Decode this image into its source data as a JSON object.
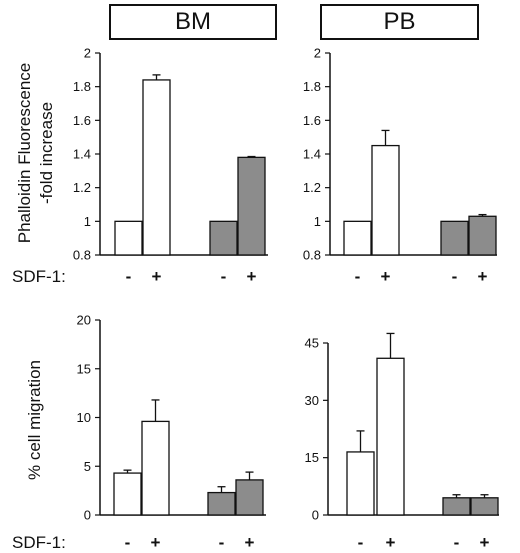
{
  "panel_headers": [
    "BM",
    "PB"
  ],
  "ylabel_top": [
    "Phalloidin Fluorescence",
    "-fold increase"
  ],
  "ylabel_bottom": "% cell migration",
  "sdf_label": "SDF-1:",
  "treatment_signs": [
    "-",
    "+",
    "-",
    "+"
  ],
  "colors": {
    "open_bar": "#ffffff",
    "filled_bar": "#8c8c8c",
    "ink": "#111111"
  },
  "chart_data": [
    {
      "type": "bar",
      "panel": "BM",
      "categories": [
        "-",
        "+",
        "-",
        "+"
      ],
      "values": [
        1.0,
        1.84,
        1.0,
        1.38
      ],
      "errors": [
        0,
        0.03,
        0,
        0.005
      ],
      "fills": [
        "open",
        "open",
        "filled",
        "filled"
      ],
      "ylim": [
        0.8,
        2.0
      ],
      "yticks": [
        0.8,
        1,
        1.2,
        1.4,
        1.6,
        1.8,
        2
      ],
      "ytick_labels": [
        "0.8",
        "1",
        "1.2",
        "1.4",
        "1.6",
        "1.8",
        "2"
      ],
      "title": "BM",
      "ylabel": "Phalloidin Fluorescence -fold increase",
      "xlabel": "SDF-1:"
    },
    {
      "type": "bar",
      "panel": "PB",
      "categories": [
        "-",
        "+",
        "-",
        "+"
      ],
      "values": [
        1.0,
        1.45,
        1.0,
        1.03
      ],
      "errors": [
        0,
        0.09,
        0,
        0.01
      ],
      "fills": [
        "open",
        "open",
        "filled",
        "filled"
      ],
      "ylim": [
        0.8,
        2.0
      ],
      "yticks": [
        0.8,
        1,
        1.2,
        1.4,
        1.6,
        1.8,
        2
      ],
      "ytick_labels": [
        "0.8",
        "1",
        "1.2",
        "1.4",
        "1.6",
        "1.8",
        "2"
      ],
      "title": "PB",
      "ylabel": "",
      "xlabel": "SDF-1:"
    },
    {
      "type": "bar",
      "panel": "BM",
      "categories": [
        "-",
        "+",
        "-",
        "+"
      ],
      "values": [
        4.3,
        9.6,
        2.3,
        3.6
      ],
      "errors": [
        0.3,
        2.2,
        0.6,
        0.8
      ],
      "fills": [
        "open",
        "open",
        "filled",
        "filled"
      ],
      "ylim": [
        0,
        20
      ],
      "yticks": [
        0,
        5,
        10,
        15,
        20
      ],
      "ytick_labels": [
        "0",
        "5",
        "10",
        "15",
        "20"
      ],
      "title": "",
      "ylabel": "% cell migration",
      "xlabel": "SDF-1:"
    },
    {
      "type": "bar",
      "panel": "PB",
      "categories": [
        "-",
        "+",
        "-",
        "+"
      ],
      "values": [
        16.5,
        41.0,
        4.5,
        4.5
      ],
      "errors": [
        5.5,
        6.5,
        0.8,
        0.8
      ],
      "fills": [
        "open",
        "open",
        "filled",
        "filled"
      ],
      "ylim": [
        0,
        50
      ],
      "yticks": [
        0,
        15,
        30,
        45
      ],
      "ytick_labels": [
        "0",
        "15",
        "30",
        "45"
      ],
      "title": "",
      "ylabel": "",
      "xlabel": "SDF-1:"
    }
  ]
}
